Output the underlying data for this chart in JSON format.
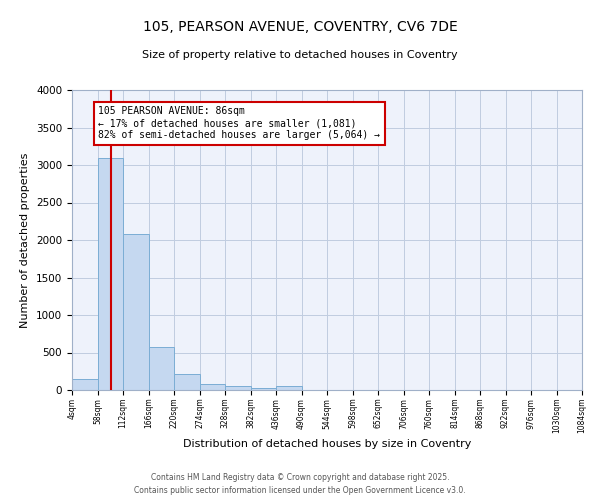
{
  "title": "105, PEARSON AVENUE, COVENTRY, CV6 7DE",
  "subtitle": "Size of property relative to detached houses in Coventry",
  "xlabel": "Distribution of detached houses by size in Coventry",
  "ylabel": "Number of detached properties",
  "bar_color": "#c5d8f0",
  "bar_edge_color": "#7badd4",
  "background_color": "#eef2fb",
  "grid_color": "#c0cce0",
  "annotation_line_color": "#cc0000",
  "annotation_box_color": "#cc0000",
  "property_line_x": 86,
  "annotation_text": "105 PEARSON AVENUE: 86sqm\n← 17% of detached houses are smaller (1,081)\n82% of semi-detached houses are larger (5,064) →",
  "bin_edges": [
    4,
    58,
    112,
    166,
    220,
    274,
    328,
    382,
    436,
    490,
    544,
    598,
    652,
    706,
    760,
    814,
    868,
    922,
    976,
    1030,
    1084
  ],
  "bin_counts": [
    150,
    3100,
    2080,
    570,
    215,
    80,
    55,
    30,
    50,
    0,
    0,
    0,
    0,
    0,
    0,
    0,
    0,
    0,
    0,
    0
  ],
  "ylim": [
    0,
    4000
  ],
  "yticks": [
    0,
    500,
    1000,
    1500,
    2000,
    2500,
    3000,
    3500,
    4000
  ],
  "footer_line1": "Contains HM Land Registry data © Crown copyright and database right 2025.",
  "footer_line2": "Contains public sector information licensed under the Open Government Licence v3.0."
}
